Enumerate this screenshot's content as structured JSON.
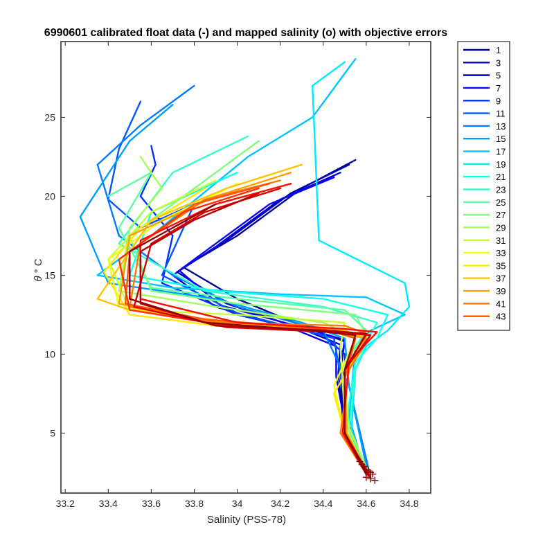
{
  "chart_data": {
    "type": "line",
    "title": "6990601 calibrated float data (-) and mapped salinity (o) with objective errors",
    "xlabel": "Salinity (PSS-78)",
    "ylabel_symbol": "θ",
    "ylabel_unit": "° C",
    "xlim": [
      33.18,
      34.9
    ],
    "ylim": [
      1.2,
      29.8
    ],
    "x_ticks": [
      "33.2",
      "33.4",
      "33.6",
      "33.8",
      "34",
      "34.2",
      "34.4",
      "34.6",
      "34.8"
    ],
    "y_ticks": [
      "5",
      "10",
      "15",
      "20",
      "25"
    ],
    "legend_position": "outside-right",
    "legend": [
      "1",
      "3",
      "5",
      "7",
      "9",
      "11",
      "13",
      "15",
      "17",
      "19",
      "21",
      "23",
      "25",
      "27",
      "29",
      "31",
      "33",
      "35",
      "37",
      "39",
      "41",
      "43"
    ],
    "colors": [
      "#00008f",
      "#0000b4",
      "#0000d9",
      "#0b00ff",
      "#0030ff",
      "#0055ff",
      "#007aff",
      "#009fff",
      "#00c4ff",
      "#00eaff",
      "#11ffee",
      "#36ffc9",
      "#5bffa4",
      "#80ff80",
      "#a4ff5b",
      "#c9ff36",
      "#eeff11",
      "#ffea00",
      "#ffc400",
      "#ff9f00",
      "#ff7a00",
      "#ff5500",
      "#ff3000",
      "#ff0b00",
      "#d90000",
      "#b40000",
      "#8f0000"
    ],
    "series": [
      {
        "name": "1",
        "color": "#00008f",
        "x": [
          34.55,
          34.3,
          34.0,
          33.75,
          34.0,
          34.3,
          34.5,
          34.48,
          34.5,
          34.62
        ],
        "y": [
          22.3,
          20.5,
          17.5,
          15.5,
          13.5,
          11.8,
          10.8,
          9.0,
          5.0,
          2.2
        ]
      },
      {
        "name": "3",
        "color": "#0000b4",
        "x": [
          34.52,
          34.25,
          33.95,
          33.72,
          33.95,
          34.3,
          34.48,
          34.47,
          34.5,
          34.61
        ],
        "y": [
          22.0,
          20.2,
          17.2,
          15.2,
          13.2,
          11.6,
          10.6,
          8.8,
          4.8,
          2.3
        ]
      },
      {
        "name": "5",
        "color": "#0000d9",
        "x": [
          34.48,
          34.2,
          33.9,
          33.7,
          33.9,
          34.28,
          34.46,
          34.46,
          34.51,
          34.6
        ],
        "y": [
          21.5,
          19.8,
          16.8,
          15.0,
          13.0,
          11.5,
          10.5,
          8.6,
          4.9,
          2.4
        ]
      },
      {
        "name": "7",
        "color": "#0b00ff",
        "x": [
          34.45,
          34.15,
          33.85,
          33.73,
          33.92,
          34.3,
          34.5,
          34.48,
          34.52,
          34.62
        ],
        "y": [
          21.2,
          19.5,
          16.5,
          15.3,
          13.1,
          11.7,
          10.9,
          9.2,
          5.1,
          2.2
        ]
      },
      {
        "name": "9",
        "color": "#0030ff",
        "x": [
          33.6,
          33.62,
          33.55,
          33.7,
          33.65,
          34.0,
          34.4,
          34.5,
          34.5,
          34.61
        ],
        "y": [
          23.2,
          22.0,
          20.0,
          17.5,
          14.5,
          12.5,
          11.2,
          10.0,
          5.2,
          2.3
        ]
      },
      {
        "name": "11",
        "color": "#0055ff",
        "x": [
          33.55,
          33.45,
          33.4,
          33.55,
          33.8,
          33.65,
          34.0,
          34.45,
          34.52,
          34.6
        ],
        "y": [
          26.0,
          23.0,
          19.8,
          18.0,
          19.5,
          15.0,
          12.6,
          11.0,
          5.5,
          2.4
        ]
      },
      {
        "name": "13",
        "color": "#007aff",
        "x": [
          33.8,
          33.55,
          33.35,
          33.45,
          33.7,
          34.0,
          34.4,
          34.52,
          34.62
        ],
        "y": [
          27.0,
          24.5,
          22.0,
          17.5,
          15.0,
          13.0,
          11.5,
          8.0,
          2.2
        ]
      },
      {
        "name": "15",
        "color": "#009fff",
        "x": [
          33.7,
          33.5,
          33.27,
          33.4,
          33.9,
          34.3,
          34.5,
          34.52,
          34.61
        ],
        "y": [
          25.8,
          23.5,
          18.7,
          14.5,
          13.5,
          12.0,
          11.0,
          8.0,
          2.3
        ]
      },
      {
        "name": "17",
        "color": "#00c4ff",
        "x": [
          34.55,
          34.35,
          34.05,
          33.6,
          33.35,
          33.7,
          34.2,
          34.6,
          34.78,
          34.62,
          34.55,
          34.52,
          34.6
        ],
        "y": [
          28.7,
          25.0,
          22.5,
          17.5,
          15.0,
          14.2,
          13.8,
          13.6,
          12.5,
          11.5,
          10.5,
          6.0,
          2.3
        ]
      },
      {
        "name": "19",
        "color": "#00eaff",
        "x": [
          34.5,
          34.35,
          34.38,
          34.78,
          34.8,
          34.7,
          34.6,
          34.55,
          34.53,
          34.62
        ],
        "y": [
          28.5,
          27.0,
          17.2,
          14.5,
          13.0,
          11.5,
          10.5,
          9.0,
          5.0,
          2.2
        ]
      },
      {
        "name": "21",
        "color": "#11ffee",
        "x": [
          34.0,
          33.6,
          33.5,
          33.9,
          34.4,
          34.7,
          34.65,
          34.55,
          34.5,
          34.61
        ],
        "y": [
          21.5,
          19.0,
          15.0,
          14.0,
          13.5,
          12.5,
          11.0,
          9.5,
          5.0,
          2.3
        ]
      },
      {
        "name": "23",
        "color": "#36ffc9",
        "x": [
          34.05,
          33.7,
          33.45,
          33.85,
          34.4,
          34.65,
          34.6,
          34.55,
          34.52,
          34.6
        ],
        "y": [
          23.8,
          21.5,
          17.0,
          14.0,
          13.0,
          12.0,
          10.8,
          9.0,
          5.2,
          2.4
        ]
      },
      {
        "name": "25",
        "color": "#5bffa4",
        "x": [
          33.4,
          33.6,
          33.45,
          33.6,
          34.0,
          34.5,
          34.6,
          34.5,
          34.5,
          34.62
        ],
        "y": [
          20.0,
          21.5,
          18.0,
          14.2,
          13.5,
          12.8,
          11.5,
          9.5,
          5.0,
          2.2
        ]
      },
      {
        "name": "27",
        "color": "#80ff80",
        "x": [
          34.1,
          33.8,
          33.5,
          33.6,
          34.0,
          34.55,
          34.6,
          34.5,
          34.5,
          34.61
        ],
        "y": [
          23.5,
          20.5,
          17.5,
          14.0,
          13.2,
          12.5,
          11.2,
          9.5,
          5.0,
          2.3
        ]
      },
      {
        "name": "29",
        "color": "#a4ff5b",
        "x": [
          33.55,
          33.65,
          33.5,
          33.45,
          33.9,
          34.4,
          34.55,
          34.5,
          34.52,
          34.6
        ],
        "y": [
          22.5,
          20.5,
          18.0,
          14.0,
          13.0,
          12.0,
          11.0,
          9.0,
          5.0,
          2.4
        ]
      },
      {
        "name": "31",
        "color": "#c9ff36",
        "x": [
          33.9,
          33.6,
          33.4,
          33.5,
          34.0,
          34.5,
          34.48,
          34.5,
          34.62
        ],
        "y": [
          21.0,
          19.0,
          16.0,
          12.8,
          12.5,
          12.0,
          10.5,
          6.0,
          2.2
        ]
      },
      {
        "name": "33",
        "color": "#eeff11",
        "x": [
          34.0,
          33.65,
          33.4,
          33.45,
          33.9,
          34.45,
          34.55,
          34.45,
          34.5,
          34.61
        ],
        "y": [
          20.8,
          18.5,
          16.0,
          13.0,
          12.0,
          11.5,
          11.0,
          8.0,
          5.0,
          2.3
        ]
      },
      {
        "name": "35",
        "color": "#ffea00",
        "x": [
          33.85,
          33.55,
          33.38,
          33.5,
          33.9,
          34.45,
          34.6,
          34.45,
          34.5,
          34.6
        ],
        "y": [
          20.5,
          18.0,
          15.2,
          12.5,
          11.8,
          11.5,
          11.0,
          7.5,
          5.0,
          2.4
        ]
      },
      {
        "name": "37",
        "color": "#ffc400",
        "x": [
          34.3,
          33.95,
          33.6,
          33.35,
          33.5,
          34.0,
          34.5,
          34.6,
          34.5,
          34.5,
          34.62
        ],
        "y": [
          22.0,
          20.5,
          18.5,
          13.5,
          12.8,
          12.0,
          11.5,
          11.0,
          8.5,
          5.0,
          2.2
        ]
      },
      {
        "name": "39",
        "color": "#ff9f00",
        "x": [
          34.25,
          33.9,
          33.5,
          33.45,
          33.8,
          34.4,
          34.6,
          34.5,
          34.51,
          34.61
        ],
        "y": [
          21.5,
          20.0,
          17.5,
          13.2,
          12.2,
          11.5,
          11.0,
          8.5,
          5.0,
          2.3
        ]
      },
      {
        "name": "41",
        "color": "#ff7a00",
        "x": [
          34.2,
          33.85,
          33.55,
          33.5,
          33.9,
          34.5,
          34.62,
          34.52,
          34.48,
          34.6
        ],
        "y": [
          21.0,
          19.8,
          17.0,
          13.0,
          12.0,
          11.8,
          11.2,
          9.0,
          5.0,
          2.4
        ]
      },
      {
        "name": "43",
        "color": "#ff5500",
        "x": [
          34.15,
          33.8,
          33.5,
          33.48,
          33.85,
          34.4,
          34.55,
          34.5,
          34.5,
          34.62
        ],
        "y": [
          20.8,
          19.5,
          16.5,
          13.2,
          12.2,
          11.6,
          11.0,
          8.5,
          5.0,
          2.2
        ]
      },
      {
        "name": "",
        "color": "#ff3000",
        "x": [
          34.1,
          33.75,
          33.45,
          33.5,
          33.95,
          34.45,
          34.6,
          34.5,
          34.5,
          34.61
        ],
        "y": [
          20.5,
          19.0,
          16.0,
          12.8,
          11.8,
          11.5,
          11.2,
          9.0,
          5.0,
          2.3
        ]
      },
      {
        "name": "",
        "color": "#ff0b00",
        "x": [
          34.25,
          33.9,
          33.55,
          33.55,
          34.0,
          34.5,
          34.65,
          34.52,
          34.49,
          34.6
        ],
        "y": [
          20.8,
          19.5,
          17.2,
          13.5,
          12.0,
          11.6,
          11.4,
          9.5,
          5.0,
          2.4
        ]
      },
      {
        "name": "",
        "color": "#d90000",
        "x": [
          34.2,
          33.85,
          33.6,
          33.52,
          33.95,
          34.45,
          34.62,
          34.5,
          34.5,
          34.62
        ],
        "y": [
          20.5,
          19.0,
          17.0,
          13.0,
          11.7,
          11.4,
          11.2,
          9.0,
          5.0,
          2.2
        ]
      },
      {
        "name": "",
        "color": "#b40000",
        "x": [
          34.1,
          33.8,
          33.55,
          33.55,
          33.9,
          34.4,
          34.6,
          34.5,
          34.5,
          34.61
        ],
        "y": [
          20.2,
          18.5,
          16.5,
          13.2,
          11.8,
          11.5,
          11.3,
          9.0,
          5.0,
          2.3
        ]
      },
      {
        "name": "",
        "color": "#8f0000",
        "x": [
          33.9,
          33.7,
          33.5,
          33.5,
          33.85,
          34.35,
          34.55,
          34.5,
          34.5,
          34.6
        ],
        "y": [
          19.5,
          18.0,
          16.5,
          13.5,
          12.0,
          11.5,
          11.2,
          9.0,
          5.0,
          2.4
        ]
      }
    ],
    "marker_series": {
      "name": "mapped salinity",
      "marker": "+",
      "color": "#8f0000",
      "x": [
        34.57,
        34.58,
        34.59,
        34.6,
        34.61,
        34.62,
        34.63,
        34.6,
        34.62,
        34.64
      ],
      "y": [
        3.2,
        3.0,
        2.9,
        2.7,
        2.6,
        2.5,
        2.4,
        2.2,
        2.1,
        2.0
      ]
    }
  }
}
